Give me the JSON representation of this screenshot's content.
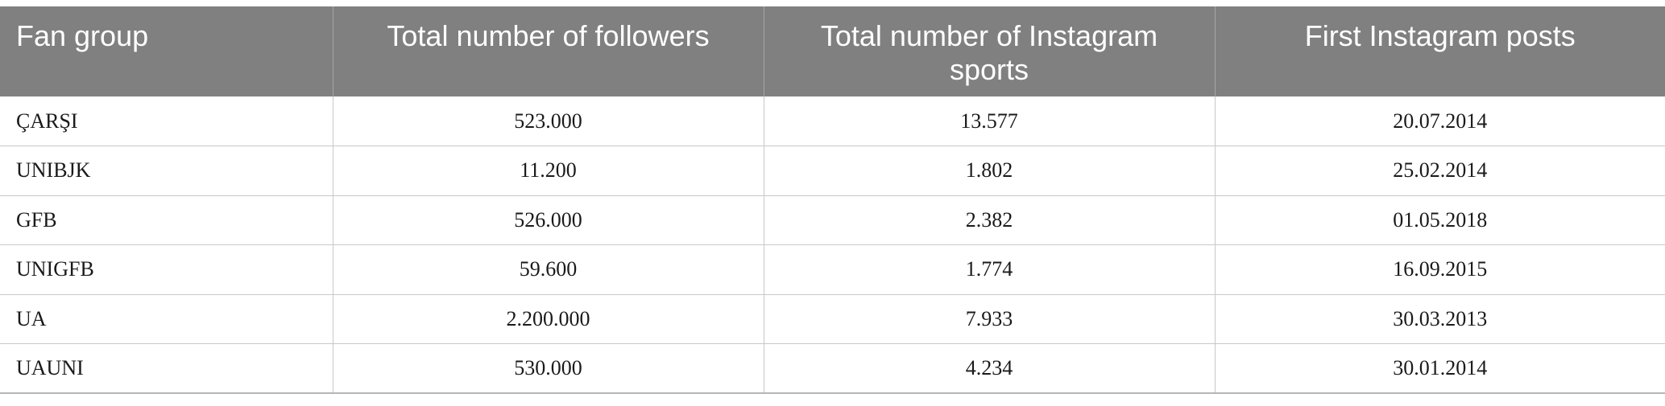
{
  "table": {
    "headers": [
      "Fan group",
      "Total number of followers",
      "Total number of Instagram sports",
      "First Instagram posts"
    ],
    "rows": [
      [
        "ÇARŞI",
        "523.000",
        "13.577",
        "20.07.2014"
      ],
      [
        "UNIBJK",
        "11.200",
        "1.802",
        "25.02.2014"
      ],
      [
        "GFB",
        "526.000",
        "2.382",
        "01.05.2018"
      ],
      [
        "UNIGFB",
        "59.600",
        "1.774",
        "16.09.2015"
      ],
      [
        "UA",
        "2.200.000",
        "7.933",
        "30.03.2013"
      ],
      [
        "UAUNI",
        "530.000",
        "4.234",
        "30.01.2014"
      ]
    ]
  },
  "colors": {
    "header_bg": "#808080",
    "header_text": "#ffffff",
    "grid_line": "#c8c8c8"
  }
}
